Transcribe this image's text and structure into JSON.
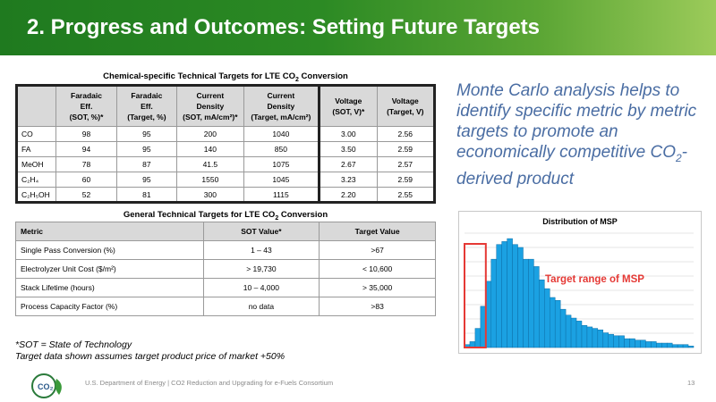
{
  "slide": {
    "title": "2.  Progress and Outcomes: Setting Future Targets"
  },
  "table1": {
    "caption": "Chemical-specific Technical Targets for LTE CO",
    "caption_sub": "2",
    "caption_end": " Conversion",
    "headers": [
      {
        "line1": "Faradaic",
        "line2": "Eff.",
        "line3": "(SOT, %)*"
      },
      {
        "line1": "Faradaic",
        "line2": "Eff.",
        "line3": "(Target, %)"
      },
      {
        "line1": "Current",
        "line2": "Density",
        "line3": "(SOT, mA/cm²)*"
      },
      {
        "line1": "Current",
        "line2": "Density",
        "line3": "(Target, mA/cm²)"
      },
      {
        "line1": "Voltage",
        "line2": "(SOT, V)*",
        "line3": ""
      },
      {
        "line1": "Voltage",
        "line2": "(Target, V)",
        "line3": ""
      }
    ],
    "rows": [
      {
        "label": "CO",
        "values": [
          "98",
          "95",
          "200",
          "1040",
          "3.00",
          "2.56"
        ]
      },
      {
        "label": "FA",
        "values": [
          "94",
          "95",
          "140",
          "850",
          "3.50",
          "2.59"
        ]
      },
      {
        "label": "MeOH",
        "values": [
          "78",
          "87",
          "41.5",
          "1075",
          "2.67",
          "2.57"
        ]
      },
      {
        "label": "C₂H₄",
        "values": [
          "60",
          "95",
          "1550",
          "1045",
          "3.23",
          "2.59"
        ]
      },
      {
        "label": "C₂H₅OH",
        "values": [
          "52",
          "81",
          "300",
          "1115",
          "2.20",
          "2.55"
        ]
      }
    ]
  },
  "table2": {
    "caption": "General Technical Targets for LTE CO",
    "caption_sub": "2",
    "caption_end": " Conversion",
    "headers": [
      "Metric",
      "SOT Value*",
      "Target Value"
    ],
    "rows": [
      {
        "metric": "Single Pass Conversion (%)",
        "sot": "1 – 43",
        "target": ">67"
      },
      {
        "metric": "Electrolyzer Unit Cost ($/m²)",
        "sot": "> 19,730",
        "target": "< 10,600"
      },
      {
        "metric": "Stack Lifetime (hours)",
        "sot": "10 – 4,000",
        "target": "> 35,000"
      },
      {
        "metric": "Process Capacity Factor (%)",
        "sot": "no data",
        "target": ">83"
      }
    ]
  },
  "monte_carlo": {
    "text1": "Monte Carlo analysis helps to identify specific metric by metric targets to promote an economically competitive CO",
    "text_sub": "2",
    "text2": "-derived product"
  },
  "chart_data": {
    "type": "bar",
    "title": "Distribution of MSP",
    "annotation": "Target range of MSP",
    "highlight_range_bins": [
      0,
      3
    ],
    "values": [
      2,
      4,
      13,
      28,
      45,
      60,
      70,
      72,
      74,
      70,
      68,
      60,
      60,
      55,
      46,
      40,
      34,
      32,
      26,
      22,
      20,
      18,
      15,
      14,
      13,
      12,
      10,
      9,
      8,
      8,
      6,
      6,
      5,
      5,
      4,
      4,
      3,
      3,
      3,
      2,
      2,
      2,
      1
    ],
    "colors": {
      "bar": "#1ba1e2",
      "highlight": "#e53935"
    }
  },
  "notes": {
    "line1": "*SOT = State of Technology",
    "line2": "Target data shown assumes target product price of market +50%"
  },
  "footer": {
    "logo_text": "CO₂",
    "org": "U.S. Department of Energy    |    CO2 Reduction and Upgrading for e-Fuels Consortium",
    "page": "13"
  },
  "colors": {
    "header_green": "#2c8a24",
    "accent_blue": "#4a6da3"
  }
}
